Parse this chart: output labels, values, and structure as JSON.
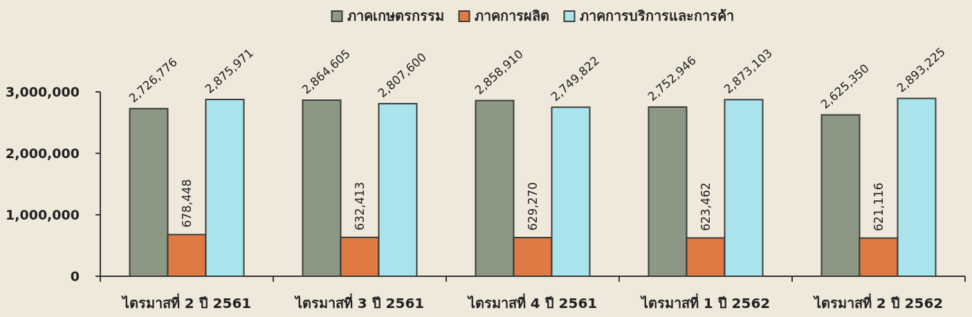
{
  "chart_data": {
    "type": "bar",
    "categories": [
      "ไตรมาสที่ 2 ปี 2561",
      "ไตรมาสที่ 3 ปี 2561",
      "ไตรมาสที่ 4 ปี 2561",
      "ไตรมาสที่ 1 ปี 2562",
      "ไตรมาสที่ 2 ปี 2562"
    ],
    "series": [
      {
        "name": "ภาคเกษตรกรรม",
        "color": "#8c9883",
        "values": [
          2726776,
          2864605,
          2858910,
          2752946,
          2625350
        ],
        "value_labels": [
          "2,726,776",
          "2,864,605",
          "2,858,910",
          "2,752,946",
          "2,625,350"
        ]
      },
      {
        "name": "ภาคการผลิต",
        "color": "#e07a44",
        "values": [
          678448,
          632413,
          629270,
          623462,
          621116
        ],
        "value_labels": [
          "678,448",
          "632,413",
          "629,270",
          "623,462",
          "621,116"
        ]
      },
      {
        "name": "ภาคการบริการและการค้า",
        "color": "#a9e3ec",
        "values": [
          2875971,
          2807600,
          2749822,
          2873103,
          2893225
        ],
        "value_labels": [
          "2,875,971",
          "2,807,600",
          "2,749,822",
          "2,873,103",
          "2,893,225"
        ]
      }
    ],
    "ylim": [
      0,
      3000000
    ],
    "yticks": [
      {
        "value": 0,
        "label": "0"
      },
      {
        "value": 1000000,
        "label": "1,000,000"
      },
      {
        "value": 2000000,
        "label": "2,000,000"
      },
      {
        "value": 3000000,
        "label": "3,000,000"
      }
    ],
    "legend": "top",
    "grid": false
  }
}
